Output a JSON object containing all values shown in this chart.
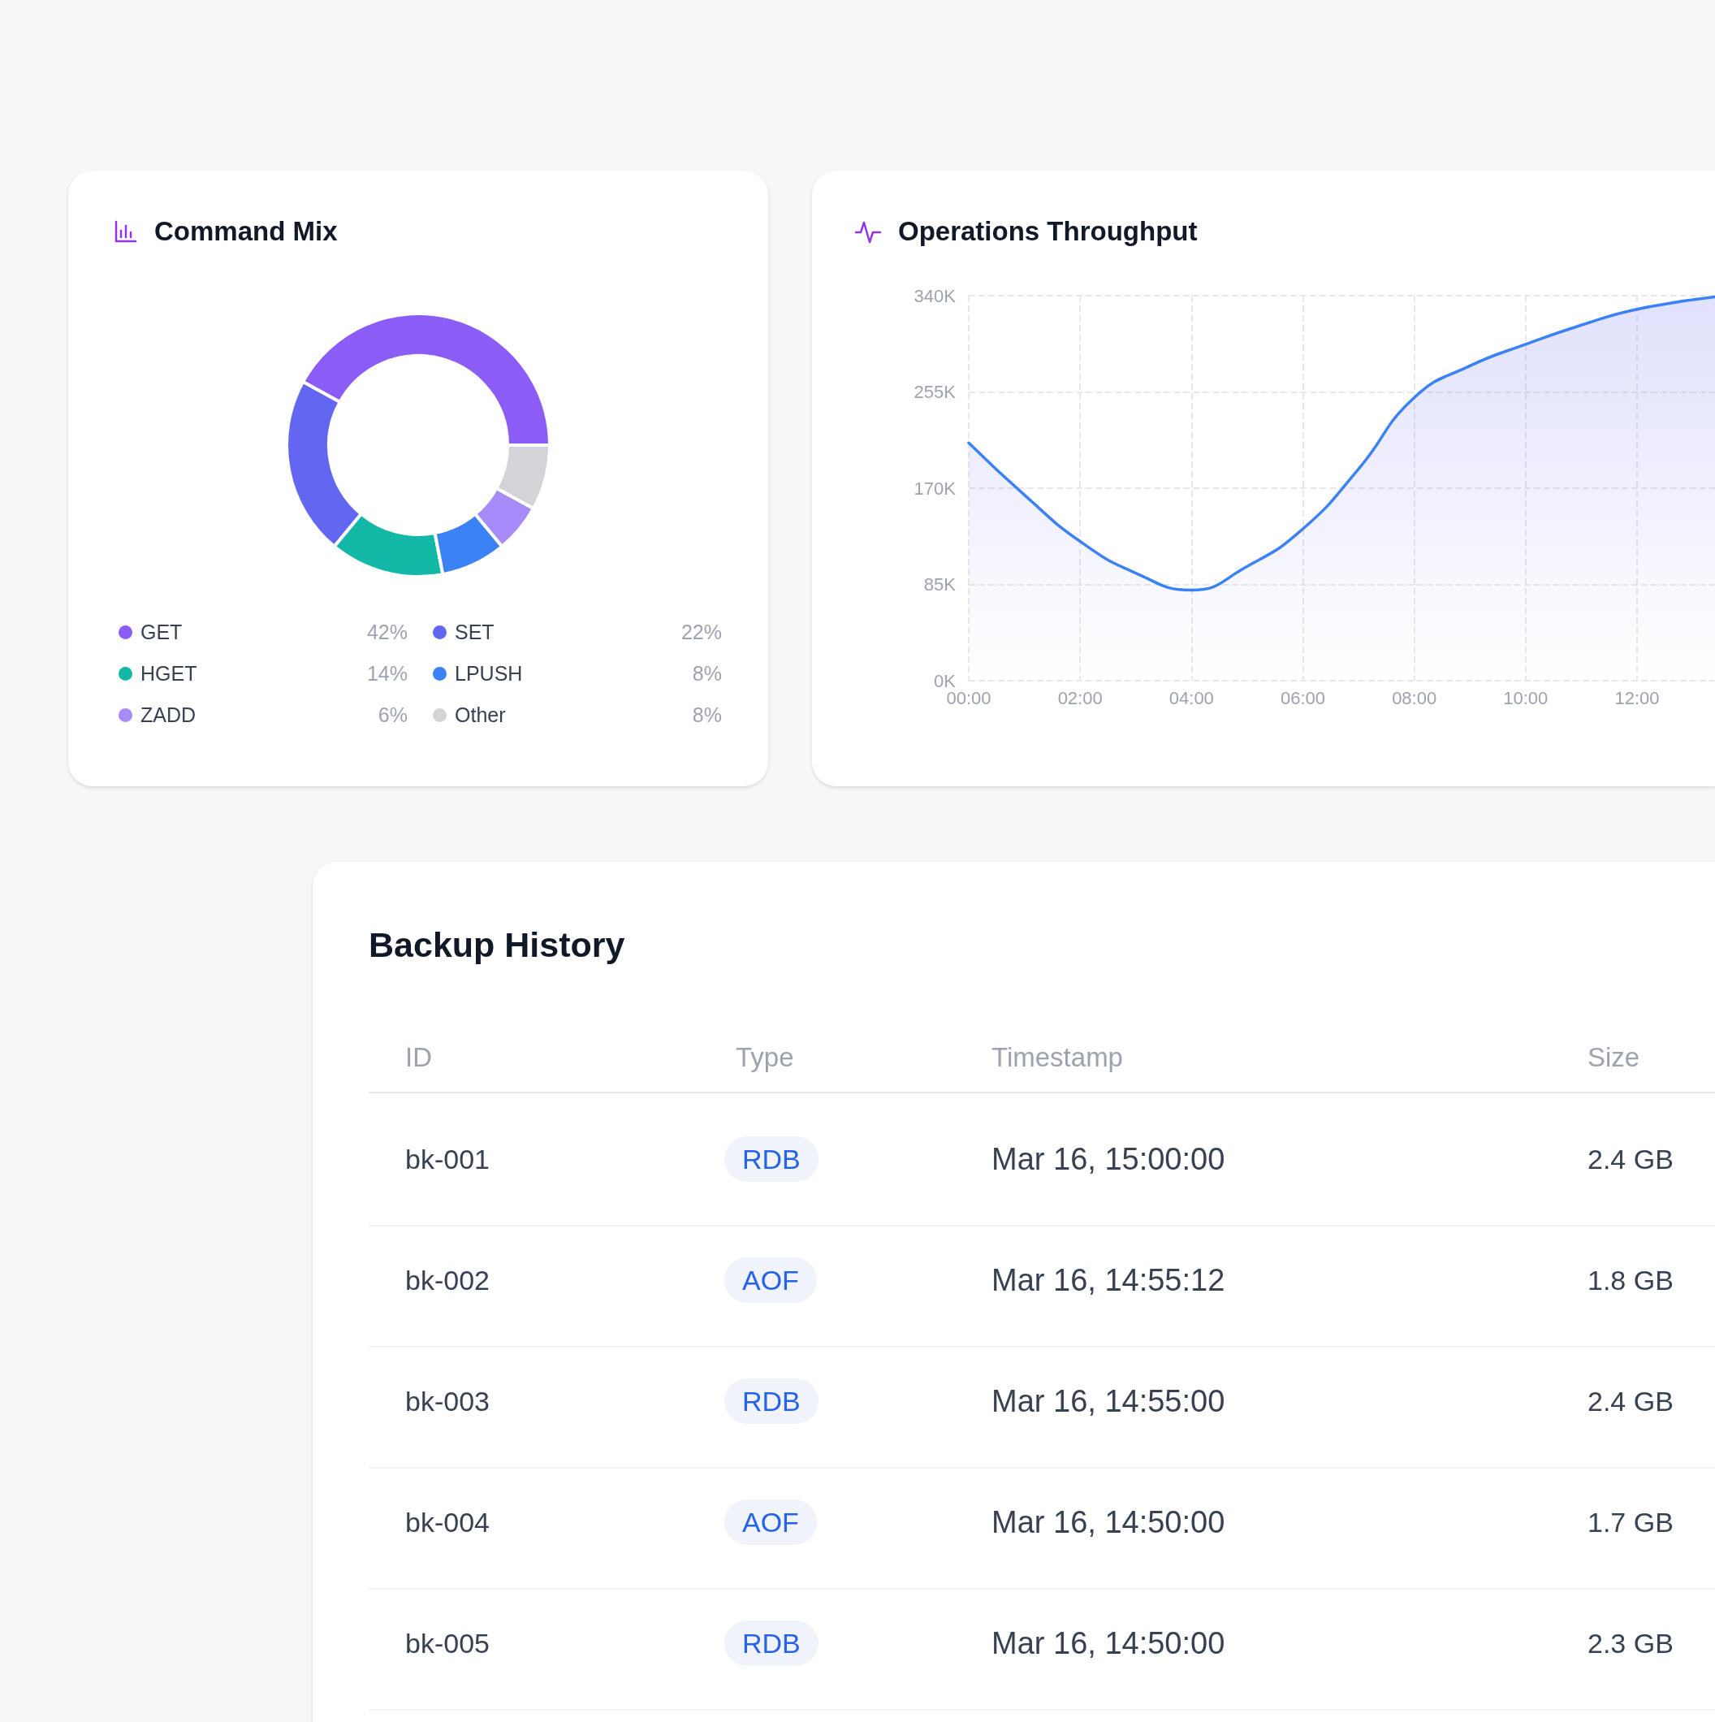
{
  "chart_data": [
    {
      "type": "donut",
      "title": "Command Mix",
      "categories": [
        "GET",
        "SET",
        "HGET",
        "LPUSH",
        "ZADD",
        "Other"
      ],
      "values": [
        42,
        22,
        14,
        8,
        6,
        8
      ],
      "value_labels": [
        "42%",
        "22%",
        "14%",
        "8%",
        "6%",
        "8%"
      ],
      "colors": [
        "#8b5cf6",
        "#6366f1",
        "#14b8a6",
        "#3b82f6",
        "#a78bfa",
        "#d4d4d8"
      ],
      "legend": "bottom"
    },
    {
      "type": "area",
      "title": "Operations Throughput",
      "x": [
        0,
        1,
        2,
        3,
        4,
        5,
        6,
        7,
        8,
        9,
        10,
        11,
        12,
        13.4
      ],
      "series": [
        {
          "color": "#3b82f6",
          "values": [
            210,
            164,
            123,
            95,
            80,
            101,
            134,
            187,
            250,
            278,
            297,
            314,
            328,
            339
          ]
        }
      ],
      "xlim": [
        0,
        13.4
      ],
      "xticks": [
        {
          "value": 0,
          "label": "00:00"
        },
        {
          "value": 2,
          "label": "02:00"
        },
        {
          "value": 4,
          "label": "04:00"
        },
        {
          "value": 6,
          "label": "06:00"
        },
        {
          "value": 8,
          "label": "08:00"
        },
        {
          "value": 10,
          "label": "10:00"
        },
        {
          "value": 12,
          "label": "12:00"
        }
      ],
      "ylim": [
        0,
        340
      ],
      "yticks": [
        {
          "value": 0,
          "label": "0K"
        },
        {
          "value": 85,
          "label": "85K"
        },
        {
          "value": 170,
          "label": "170K"
        },
        {
          "value": 255,
          "label": "255K"
        },
        {
          "value": 340,
          "label": "340K"
        }
      ],
      "grid": true,
      "legend": false,
      "marker": "none"
    },
    {
      "type": "other",
      "title": "Backup History",
      "categories": [
        "ID",
        "Type",
        "Timestamp",
        "Size"
      ],
      "annotations": [
        "bk-001",
        "RDB",
        "Mar 16, 15:00:00",
        "2.4 GB",
        "bk-002",
        "AOF",
        "Mar 16, 14:55:12",
        "1.8 GB",
        "bk-003",
        "RDB",
        "Mar 16, 14:55:00",
        "2.4 GB",
        "bk-004",
        "AOF",
        "Mar 16, 14:50:00",
        "1.7 GB",
        "bk-005",
        "RDB",
        "Mar 16, 14:50:00",
        "2.3 GB"
      ]
    }
  ]
}
